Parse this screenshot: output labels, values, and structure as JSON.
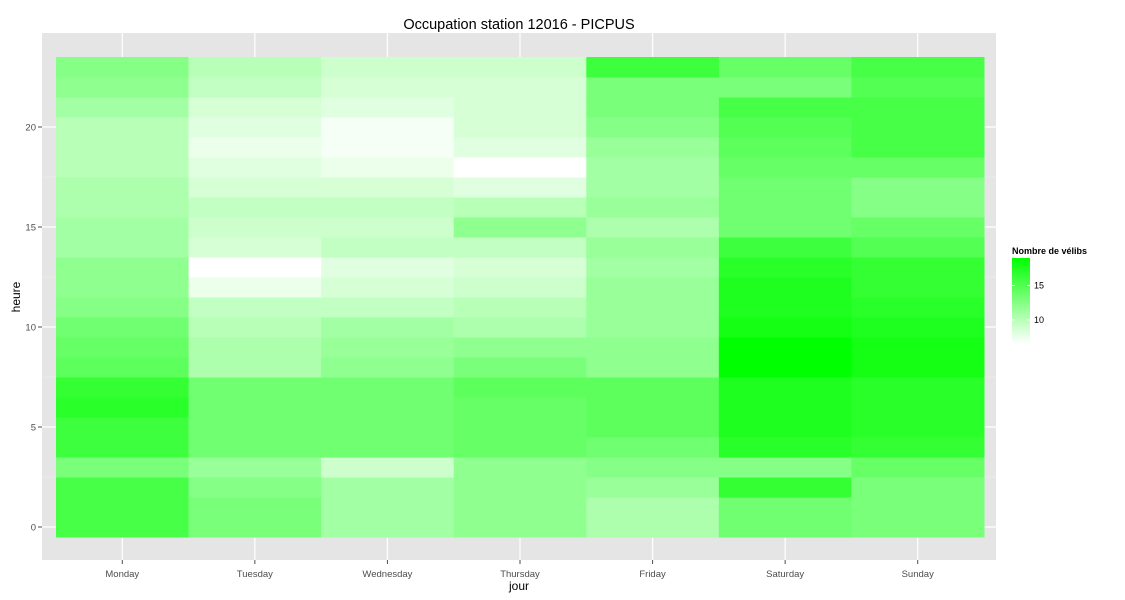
{
  "chart_data": {
    "type": "heatmap",
    "title": "Occupation station 12016 - PICPUS",
    "xlabel": "jour",
    "ylabel": "heure",
    "categories": [
      "Monday",
      "Tuesday",
      "Wednesday",
      "Thursday",
      "Friday",
      "Saturday",
      "Sunday"
    ],
    "hours": [
      0,
      1,
      2,
      3,
      4,
      5,
      6,
      7,
      8,
      9,
      10,
      11,
      12,
      13,
      14,
      15,
      16,
      17,
      18,
      19,
      20,
      21,
      22,
      23
    ],
    "y_ticks": [
      0,
      5,
      10,
      15,
      20
    ],
    "ylim": [
      -0.5,
      23.5
    ],
    "grid": true,
    "legend": {
      "title": "Nombre de vélibs",
      "position": "right",
      "ticks": [
        10,
        15
      ],
      "min": 6.5,
      "max": 19
    },
    "colors": {
      "low": "#ffffff",
      "high": "#00ff00",
      "panel": "#e5e5e5",
      "grid_major": "#ffffff",
      "grid_minor": "#f2f2f2"
    },
    "values_by_day": [
      {
        "day": "Monday",
        "values": [
          15.5,
          15.5,
          15.5,
          13,
          16,
          16,
          17,
          16.5,
          14.5,
          14,
          13.5,
          12.5,
          12,
          12,
          11,
          11,
          10.5,
          10.5,
          10,
          10,
          10,
          11,
          12,
          12.5
        ]
      },
      {
        "day": "Tuesday",
        "values": [
          13,
          13,
          12.5,
          11.5,
          13.5,
          13.5,
          13.5,
          13.5,
          10.5,
          10.5,
          10,
          9.5,
          7.5,
          6.5,
          8.5,
          9,
          9.5,
          8.5,
          8,
          7.5,
          8,
          8.5,
          9.5,
          10
        ]
      },
      {
        "day": "Wednesday",
        "values": [
          11,
          11,
          11,
          9,
          13.5,
          13.5,
          13.5,
          13.5,
          12,
          11.5,
          11,
          9.5,
          8.5,
          8,
          9.5,
          9,
          9.5,
          8.5,
          7.5,
          7,
          7,
          8,
          8.5,
          9
        ]
      },
      {
        "day": "Thursday",
        "values": [
          12,
          12,
          12,
          12,
          14,
          14,
          14,
          14.5,
          13,
          12,
          10.5,
          10,
          9,
          8.5,
          9.5,
          12,
          10,
          8,
          6.5,
          8,
          8.5,
          8.5,
          8.5,
          9
        ]
      },
      {
        "day": "Friday",
        "values": [
          10.5,
          10.5,
          11.5,
          12.5,
          13.5,
          14.5,
          14.5,
          14.5,
          12,
          12,
          11.5,
          11.5,
          11.5,
          11,
          11.5,
          10.5,
          11.5,
          11,
          11,
          11.5,
          12.5,
          13,
          13,
          16
        ]
      },
      {
        "day": "Saturday",
        "values": [
          13.5,
          13.5,
          16.5,
          12.5,
          17,
          17.5,
          17.5,
          17.5,
          19,
          19,
          18,
          17.5,
          17.5,
          17,
          16,
          13.5,
          13.5,
          13.5,
          14,
          14.5,
          15,
          15.5,
          13,
          14
        ]
      },
      {
        "day": "Sunday",
        "values": [
          13,
          13,
          13,
          14,
          16.5,
          17,
          17,
          17,
          18,
          18,
          17.5,
          17,
          16.5,
          16.5,
          15,
          14,
          12.5,
          12.5,
          14,
          15.5,
          15.5,
          15.5,
          15,
          15.5
        ]
      }
    ]
  }
}
